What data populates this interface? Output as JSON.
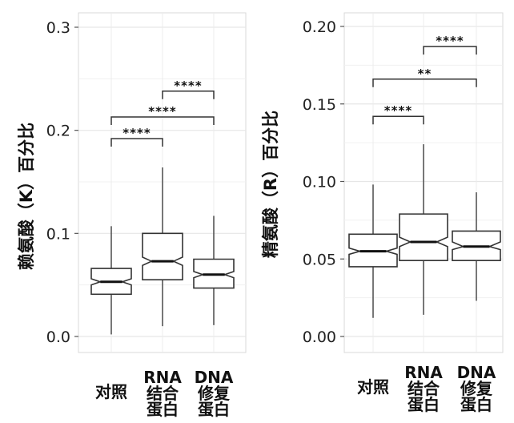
{
  "chart_data": [
    {
      "type": "boxplot",
      "ylabel": "赖氨酸（K）百分比",
      "ylim": [
        0.0,
        0.3
      ],
      "yticks": [
        "0.0",
        "0.1",
        "0.2",
        "0.3"
      ],
      "tick_values": [
        0.0,
        0.1,
        0.2,
        0.3
      ],
      "categories": [
        [
          "对照"
        ],
        [
          "RNA",
          "结合",
          "蛋白"
        ],
        [
          "DNA",
          "修复",
          "蛋白"
        ]
      ],
      "boxes": [
        {
          "min": 0.002,
          "q1": 0.041,
          "median": 0.053,
          "q3": 0.066,
          "max": 0.107,
          "notch_low": 0.05,
          "notch_high": 0.056
        },
        {
          "min": 0.01,
          "q1": 0.055,
          "median": 0.073,
          "q3": 0.1,
          "max": 0.164,
          "notch_low": 0.069,
          "notch_high": 0.077
        },
        {
          "min": 0.011,
          "q1": 0.047,
          "median": 0.06,
          "q3": 0.075,
          "max": 0.117,
          "notch_low": 0.057,
          "notch_high": 0.063
        }
      ],
      "significance": [
        {
          "from": 0,
          "to": 1,
          "y": 0.192,
          "label": "****"
        },
        {
          "from": 0,
          "to": 2,
          "y": 0.213,
          "label": "****"
        },
        {
          "from": 1,
          "to": 2,
          "y": 0.238,
          "label": "****"
        }
      ]
    },
    {
      "type": "boxplot",
      "ylabel": "精氨酸（R）百分比",
      "ylim": [
        0.0,
        0.2
      ],
      "yticks": [
        "0.00",
        "0.05",
        "0.10",
        "0.15",
        "0.20"
      ],
      "tick_values": [
        0.0,
        0.05,
        0.1,
        0.15,
        0.2
      ],
      "categories": [
        [
          "对照"
        ],
        [
          "RNA",
          "结合",
          "蛋白"
        ],
        [
          "DNA",
          "修复",
          "蛋白"
        ]
      ],
      "boxes": [
        {
          "min": 0.012,
          "q1": 0.045,
          "median": 0.055,
          "q3": 0.066,
          "max": 0.098,
          "notch_low": 0.053,
          "notch_high": 0.057
        },
        {
          "min": 0.014,
          "q1": 0.049,
          "median": 0.061,
          "q3": 0.079,
          "max": 0.124,
          "notch_low": 0.058,
          "notch_high": 0.064
        },
        {
          "min": 0.023,
          "q1": 0.049,
          "median": 0.058,
          "q3": 0.068,
          "max": 0.093,
          "notch_low": 0.056,
          "notch_high": 0.061
        }
      ],
      "significance": [
        {
          "from": 0,
          "to": 1,
          "y": 0.142,
          "label": "****"
        },
        {
          "from": 0,
          "to": 2,
          "y": 0.166,
          "label": "**"
        },
        {
          "from": 1,
          "to": 2,
          "y": 0.187,
          "label": "****"
        }
      ]
    }
  ]
}
